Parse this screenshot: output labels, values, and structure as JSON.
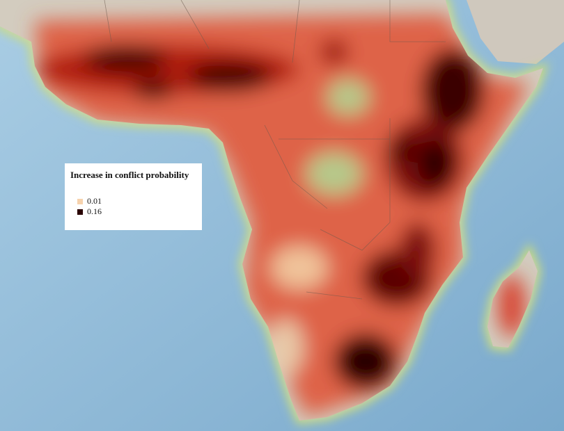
{
  "legend": {
    "title": "Increase in conflict probability",
    "items": [
      {
        "label": "0.01",
        "color": "#f6d2ad"
      },
      {
        "label": "0.16",
        "color": "#2a0202"
      }
    ]
  }
}
